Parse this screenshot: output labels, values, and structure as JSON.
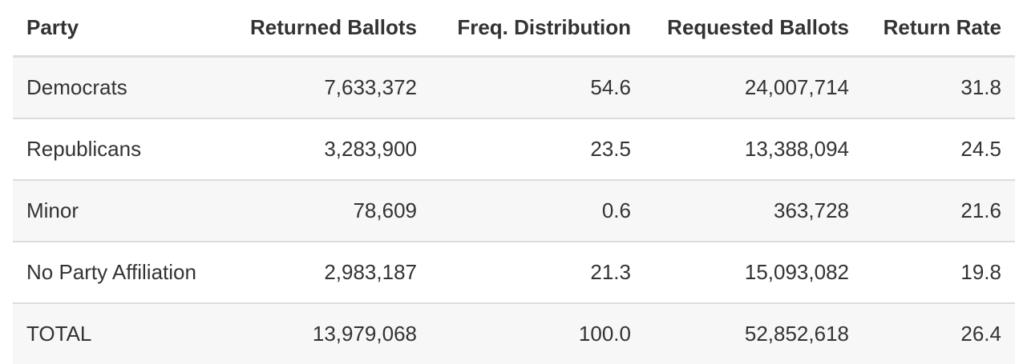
{
  "table": {
    "columns": [
      "Party",
      "Returned Ballots",
      "Freq. Distribution",
      "Requested Ballots",
      "Return Rate"
    ],
    "rows": [
      [
        "Democrats",
        "7,633,372",
        "54.6",
        "24,007,714",
        "31.8"
      ],
      [
        "Republicans",
        "3,283,900",
        "23.5",
        "13,388,094",
        "24.5"
      ],
      [
        "Minor",
        "78,609",
        "0.6",
        "363,728",
        "21.6"
      ],
      [
        "No Party Affiliation",
        "2,983,187",
        "21.3",
        "15,093,082",
        "19.8"
      ],
      [
        "TOTAL",
        "13,979,068",
        "100.0",
        "52,852,618",
        "26.4"
      ]
    ]
  },
  "colors": {
    "header_text": "#333333",
    "body_text": "#333333",
    "stripe": "#f7f7f7",
    "rule": "#dddddd"
  }
}
